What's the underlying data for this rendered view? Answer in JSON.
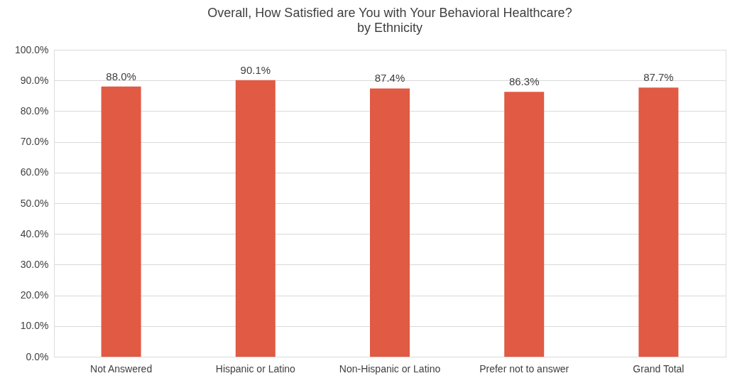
{
  "chart_data": {
    "type": "bar",
    "title": "Overall, How Satisfied are You with Your Behavioral Healthcare?",
    "subtitle": "by Ethnicity",
    "categories": [
      "Not Answered",
      "Hispanic or Latino",
      "Non-Hispanic or Latino",
      "Prefer not to answer",
      "Grand Total"
    ],
    "values": [
      88.0,
      90.1,
      87.4,
      86.3,
      87.7
    ],
    "value_labels": [
      "88.0%",
      "90.1%",
      "87.4%",
      "86.3%",
      "87.7%"
    ],
    "color": "#e05a44",
    "ylim": [
      0,
      100
    ],
    "yticks": [
      {
        "value": 0,
        "label": "0.0%"
      },
      {
        "value": 10,
        "label": "10.0%"
      },
      {
        "value": 20,
        "label": "20.0%"
      },
      {
        "value": 30,
        "label": "30.0%"
      },
      {
        "value": 40,
        "label": "40.0%"
      },
      {
        "value": 50,
        "label": "50.0%"
      },
      {
        "value": 60,
        "label": "60.0%"
      },
      {
        "value": 70,
        "label": "70.0%"
      },
      {
        "value": 80,
        "label": "80.0%"
      },
      {
        "value": 90,
        "label": "90.0%"
      },
      {
        "value": 100,
        "label": "100.0%"
      }
    ],
    "grid": "y"
  }
}
